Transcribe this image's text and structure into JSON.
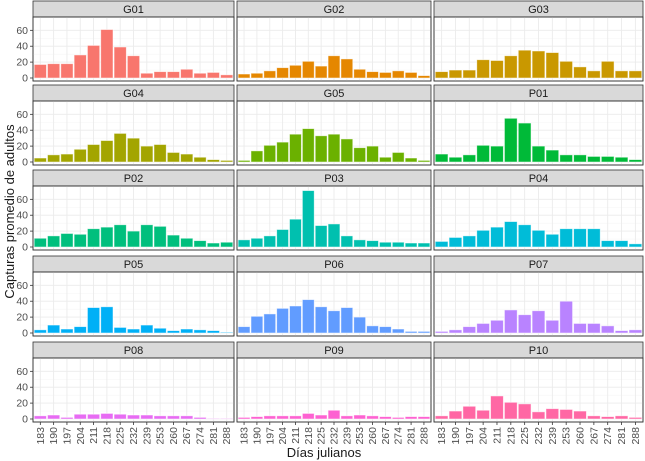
{
  "chart_data": {
    "type": "bar",
    "layout": "faceted grid 5 rows x 3 columns",
    "xlabel": "Días julianos",
    "ylabel": "Capturas promedio de adultos",
    "categories": [
      "183",
      "190",
      "197",
      "204",
      "211",
      "218",
      "225",
      "232",
      "239",
      "253",
      "260",
      "267",
      "274",
      "281",
      "288"
    ],
    "ylim": [
      0,
      73
    ],
    "yticks": [
      0,
      20,
      40,
      60
    ],
    "grid": true,
    "legend": "none",
    "series": [
      {
        "name": "G01",
        "color": "#F8766D",
        "values": [
          17,
          18,
          18,
          29,
          41,
          61,
          39,
          28,
          6,
          8,
          8,
          11,
          6,
          7,
          4
        ]
      },
      {
        "name": "G02",
        "color": "#E58700",
        "values": [
          5,
          6,
          9,
          13,
          16,
          21,
          15,
          28,
          24,
          11,
          8,
          7,
          9,
          7,
          3
        ]
      },
      {
        "name": "G03",
        "color": "#C99800",
        "values": [
          8,
          10,
          10,
          23,
          22,
          28,
          35,
          34,
          32,
          21,
          14,
          9,
          21,
          9,
          9
        ]
      },
      {
        "name": "G04",
        "color": "#A3A500",
        "values": [
          5,
          9,
          10,
          16,
          22,
          27,
          36,
          30,
          20,
          22,
          12,
          10,
          6,
          3,
          2
        ]
      },
      {
        "name": "G05",
        "color": "#6BB100",
        "values": [
          2,
          14,
          21,
          25,
          35,
          42,
          33,
          35,
          29,
          18,
          20,
          6,
          12,
          5,
          2
        ]
      },
      {
        "name": "P01",
        "color": "#00BA38",
        "values": [
          10,
          6,
          9,
          21,
          20,
          55,
          49,
          20,
          15,
          9,
          9,
          7,
          7,
          6,
          3
        ]
      },
      {
        "name": "P02",
        "color": "#00BF7D",
        "values": [
          11,
          14,
          17,
          16,
          23,
          25,
          28,
          20,
          28,
          26,
          15,
          11,
          8,
          5,
          6
        ]
      },
      {
        "name": "P03",
        "color": "#00C0AF",
        "values": [
          9,
          11,
          14,
          22,
          35,
          71,
          27,
          29,
          14,
          9,
          8,
          6,
          6,
          5,
          5
        ]
      },
      {
        "name": "P04",
        "color": "#00BCD8",
        "values": [
          7,
          12,
          14,
          21,
          25,
          32,
          28,
          21,
          16,
          23,
          23,
          23,
          8,
          8,
          4
        ]
      },
      {
        "name": "P05",
        "color": "#00B0F6",
        "values": [
          4,
          10,
          5,
          8,
          32,
          33,
          7,
          5,
          10,
          6,
          3,
          5,
          4,
          3,
          1
        ]
      },
      {
        "name": "P06",
        "color": "#619CFF",
        "values": [
          8,
          21,
          24,
          31,
          34,
          42,
          33,
          28,
          32,
          20,
          9,
          8,
          5,
          2,
          2
        ]
      },
      {
        "name": "P07",
        "color": "#B983FF",
        "values": [
          2,
          4,
          8,
          12,
          16,
          29,
          23,
          28,
          16,
          40,
          12,
          12,
          9,
          3,
          4
        ]
      },
      {
        "name": "P08",
        "color": "#E76BF3",
        "values": [
          4,
          5,
          2,
          6,
          6,
          7,
          6,
          5,
          5,
          4,
          4,
          4,
          2,
          0.5,
          0.5
        ]
      },
      {
        "name": "P09",
        "color": "#FD61D1",
        "values": [
          2,
          3,
          4,
          4,
          4,
          7,
          5,
          11,
          4,
          5,
          4,
          3,
          2,
          3,
          3
        ]
      },
      {
        "name": "P10",
        "color": "#FF67A4",
        "values": [
          4,
          10,
          16,
          11,
          29,
          21,
          19,
          9,
          13,
          12,
          10,
          4,
          3,
          4,
          2
        ]
      }
    ]
  }
}
